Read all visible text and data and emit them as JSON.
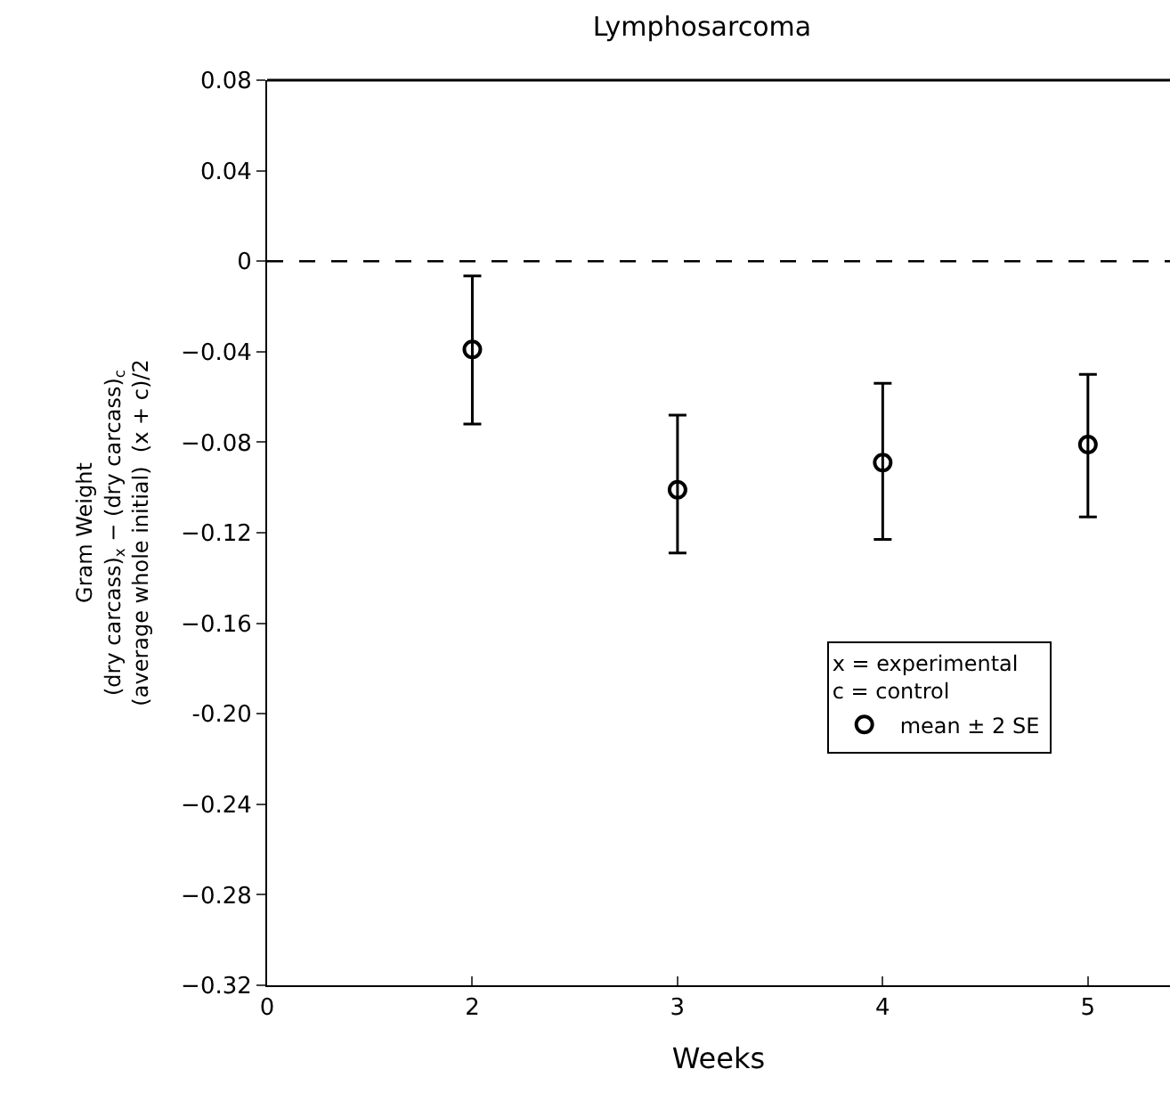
{
  "chart_data": {
    "type": "scatter",
    "title": "Lymphosarcoma",
    "xlabel": "Weeks",
    "ylabel": "Gram Weight\n(dry carcass)$_{x}$ − (dry carcass)$_{c}$\n(average whole initial)  (x + c)/2",
    "legend_title": "x = experimental\nc = control",
    "categories": [
      "0",
      "2",
      "3",
      "4",
      "5"
    ],
    "series": [
      {
        "name": "mean ± 2 SE",
        "color": "#000000",
        "values": [
          null,
          -0.039,
          -0.101,
          -0.089,
          -0.081
        ],
        "errors": [
          null,
          [
            -0.072,
            -0.0065
          ],
          [
            -0.129,
            -0.068
          ],
          [
            -0.123,
            -0.054
          ],
          [
            -0.113,
            -0.05
          ]
        ]
      }
    ],
    "ylim": [
      -0.32,
      0.08
    ],
    "yticks": [
      0.08,
      0.04,
      0,
      -0.04,
      -0.08,
      -0.12,
      -0.16,
      {
        "value": -0.2,
        "label": "-0.20"
      },
      -0.24,
      -0.28,
      -0.32
    ],
    "ref_lines": [
      {
        "axis": "y",
        "value": 0,
        "line_style": "dashed"
      }
    ],
    "marker": "circle",
    "legend": "right"
  }
}
